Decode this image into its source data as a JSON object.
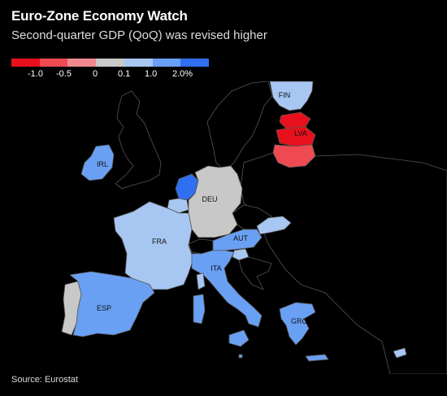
{
  "title": "Euro-Zone Economy Watch",
  "subtitle": "Second-quarter GDP (QoQ) was revised higher",
  "legend": {
    "colors": [
      "#e8101c",
      "#ef4a52",
      "#f08a8e",
      "#c8c8c8",
      "#a7c6f2",
      "#6aa0f4",
      "#2f6ff0"
    ],
    "labels": [
      "-1.0",
      "-0.5",
      "0",
      "0.1",
      "1.0",
      "2.0%"
    ]
  },
  "countries": {
    "FIN": "FIN",
    "LVA": "LVA",
    "IRL": "IRL",
    "DEU": "DEU",
    "FRA": "FRA",
    "AUT": "AUT",
    "ITA": "ITA",
    "ESP": "ESP",
    "GRC": "GRC"
  },
  "colors": {
    "background": "#000000",
    "border": "#555555",
    "nodata": "#000000"
  },
  "source": "Source: Eurostat"
}
